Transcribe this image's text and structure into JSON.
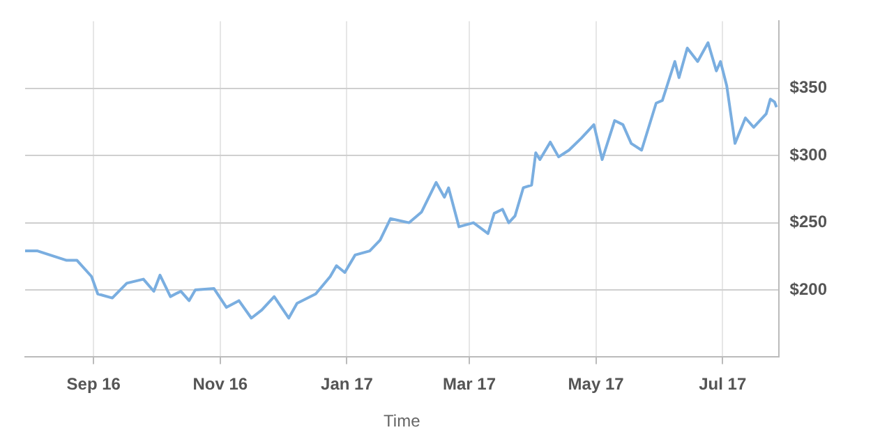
{
  "chart_data": {
    "type": "line",
    "xlabel": "Time",
    "x": [
      "2016-07-30",
      "2016-08-05",
      "2016-08-19",
      "2016-08-24",
      "2016-08-31",
      "2016-09-03",
      "2016-09-10",
      "2016-09-17",
      "2016-09-25",
      "2016-09-30",
      "2016-10-03",
      "2016-10-08",
      "2016-10-13",
      "2016-10-17",
      "2016-10-20",
      "2016-10-29",
      "2016-11-04",
      "2016-11-10",
      "2016-11-16",
      "2016-11-21",
      "2016-11-27",
      "2016-12-04",
      "2016-12-08",
      "2016-12-17",
      "2016-12-24",
      "2016-12-27",
      "2016-12-31",
      "2017-01-05",
      "2017-01-12",
      "2017-01-17",
      "2017-01-22",
      "2017-01-31",
      "2017-02-06",
      "2017-02-13",
      "2017-02-17",
      "2017-02-19",
      "2017-02-24",
      "2017-03-03",
      "2017-03-10",
      "2017-03-13",
      "2017-03-17",
      "2017-03-20",
      "2017-03-23",
      "2017-03-27",
      "2017-03-31",
      "2017-04-02",
      "2017-04-04",
      "2017-04-09",
      "2017-04-13",
      "2017-04-18",
      "2017-04-24",
      "2017-04-30",
      "2017-05-04",
      "2017-05-10",
      "2017-05-14",
      "2017-05-18",
      "2017-05-23",
      "2017-05-30",
      "2017-06-02",
      "2017-06-08",
      "2017-06-10",
      "2017-06-14",
      "2017-06-19",
      "2017-06-24",
      "2017-06-28",
      "2017-06-30",
      "2017-07-03",
      "2017-07-07",
      "2017-07-12",
      "2017-07-16",
      "2017-07-22",
      "2017-07-24",
      "2017-07-26",
      "2017-07-27"
    ],
    "series": [
      {
        "color": "#7aaee0",
        "values": [
          229,
          229,
          222,
          222,
          210,
          197,
          194,
          205,
          208,
          199,
          211,
          195,
          199,
          192,
          200,
          201,
          187,
          192,
          179,
          185,
          195,
          179,
          190,
          197,
          210,
          218,
          213,
          226,
          229,
          237,
          253,
          250,
          258,
          280,
          269,
          276,
          247,
          250,
          242,
          257,
          260,
          250,
          255,
          276,
          278,
          302,
          297,
          310,
          299,
          304,
          313,
          323,
          297,
          326,
          323,
          309,
          304,
          339,
          341,
          370,
          358,
          380,
          370,
          384,
          363,
          370,
          352,
          309,
          328,
          321,
          331,
          342,
          340,
          336
        ]
      }
    ],
    "xlim": [
      "2016-07-30",
      "2017-07-28"
    ],
    "xticks": [
      {
        "value": "2016-09-01",
        "label": "Sep 16"
      },
      {
        "value": "2016-11-01",
        "label": "Nov 16"
      },
      {
        "value": "2017-01-01",
        "label": "Jan 17"
      },
      {
        "value": "2017-03-01",
        "label": "Mar 17"
      },
      {
        "value": "2017-05-01",
        "label": "May 17"
      },
      {
        "value": "2017-07-01",
        "label": "Jul 17"
      }
    ],
    "ylim": [
      150,
      400
    ],
    "yticks": [
      {
        "value": 200,
        "label": "$200"
      },
      {
        "value": 250,
        "label": "$250"
      },
      {
        "value": 300,
        "label": "$300"
      },
      {
        "value": 350,
        "label": "$350"
      }
    ],
    "grid": true,
    "marker": "none",
    "line_style": "solid",
    "legend": false
  }
}
